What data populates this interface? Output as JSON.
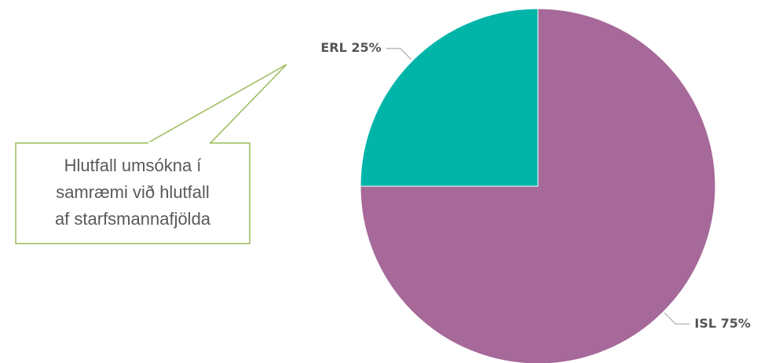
{
  "chart_data": {
    "type": "pie",
    "values": [
      25,
      75
    ],
    "value_labels": [
      "ERL 25%",
      "ISL 75%"
    ],
    "colors": [
      "#00b5a8",
      "#a66999"
    ],
    "annotation": {
      "lines": [
        "Hlutfall umsókna í",
        "samræmi við hlutfall",
        "af starfsmannafjölda"
      ]
    }
  }
}
